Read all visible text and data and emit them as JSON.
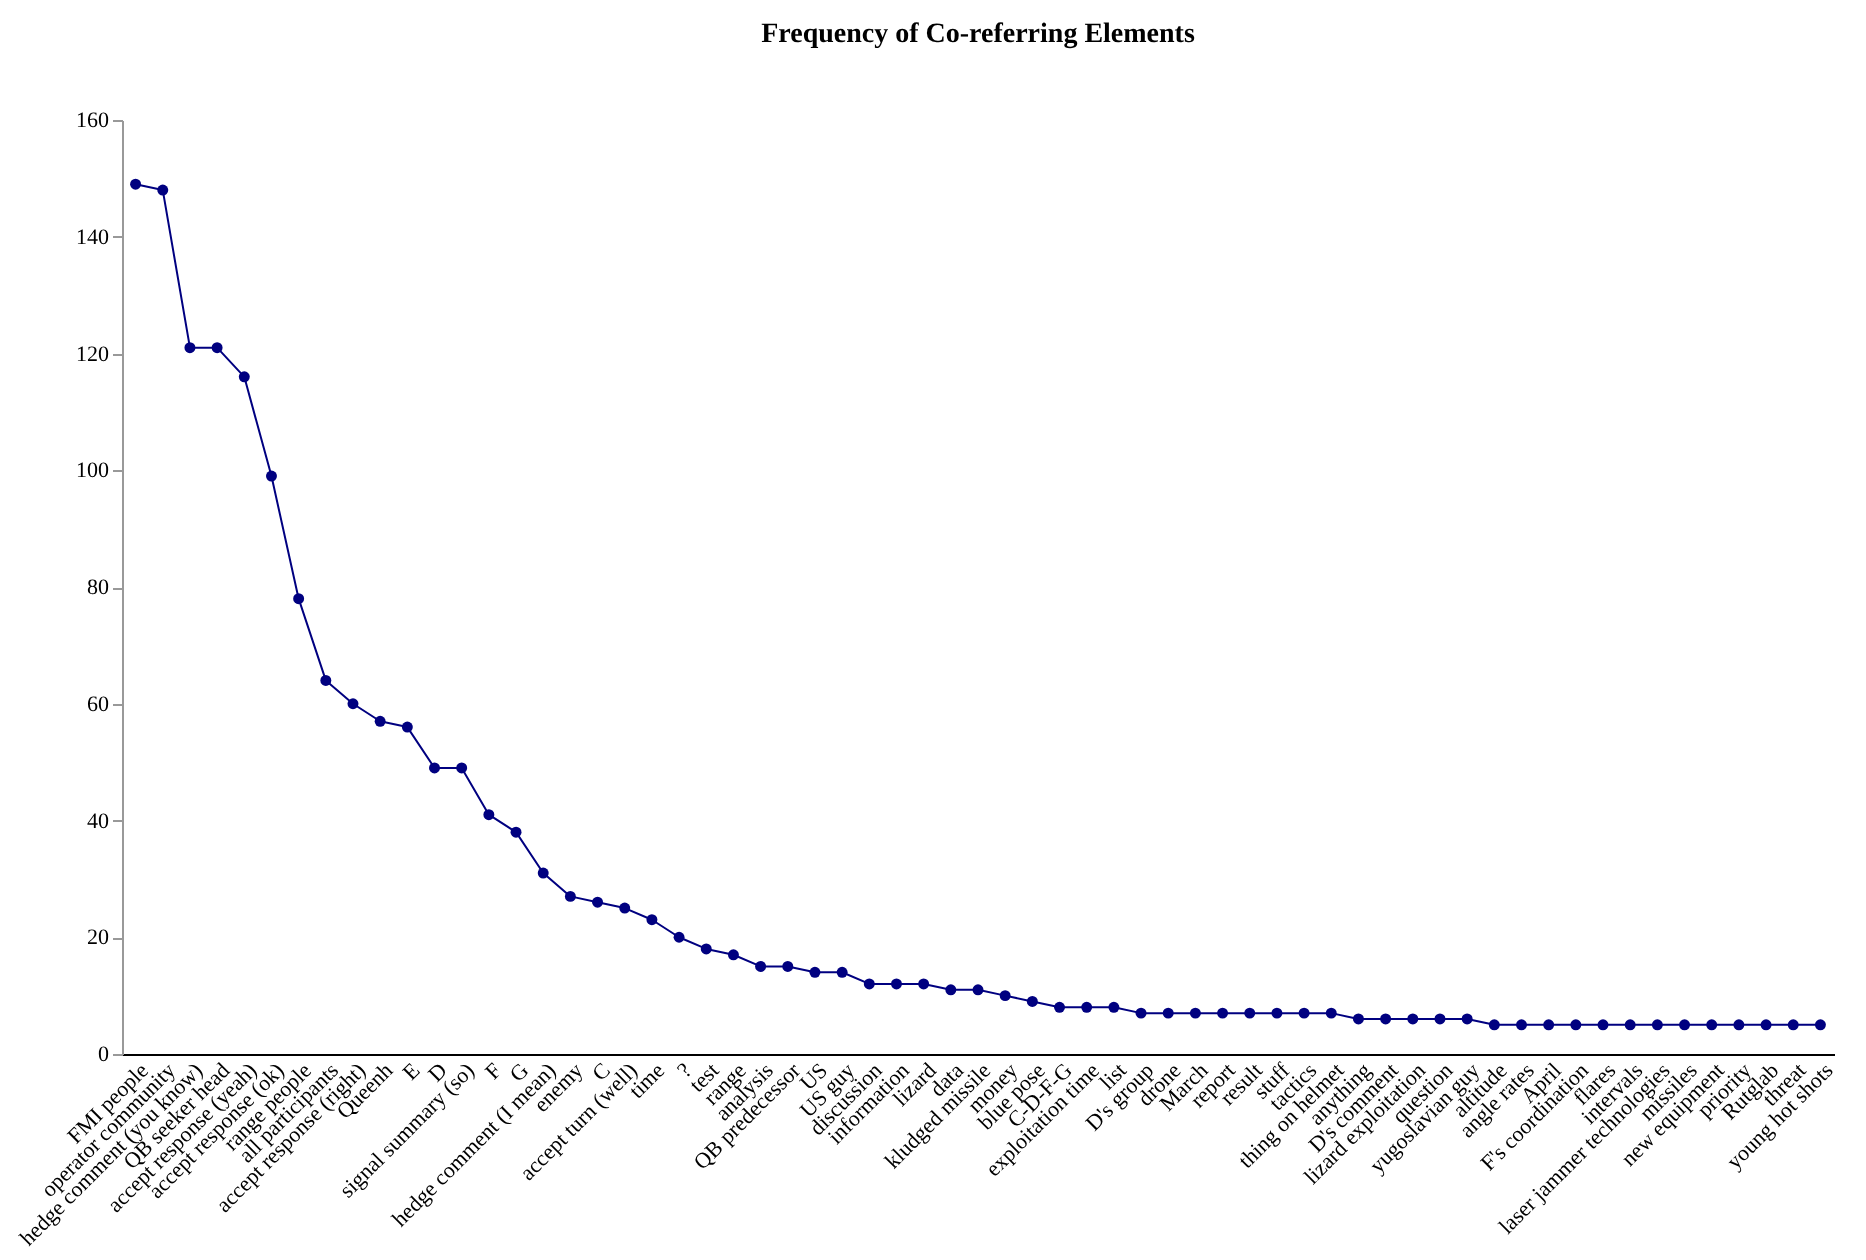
{
  "chart_data": {
    "type": "line",
    "title": "Frequency of Co-referring Elements",
    "categories": [
      "FMI people",
      "operator community",
      "hedge comment (you know)",
      "QB seeker head",
      "accept response (yeah)",
      "accept response (ok)",
      "range people",
      "all participants",
      "accept response (right)",
      "Queenh",
      "E",
      "D",
      "signal summary (so)",
      "F",
      "G",
      "hedge comment (I mean)",
      "enemy",
      "C",
      "accept turn (well)",
      "time",
      "?",
      "test",
      "range",
      "analysis",
      "QB predecessor",
      "US",
      "US guy",
      "discussion",
      "information",
      "lizard",
      "data",
      "kludged missile",
      "money",
      "blue pose",
      "C-D-F-G",
      "exploitation time",
      "list",
      "D's group",
      "drone",
      "March",
      "report",
      "result",
      "stuff",
      "tactics",
      "thing on helmet",
      "anything",
      "D's comment",
      "lizard exploitation",
      "question",
      "yugoslavian guy",
      "altitude",
      "angle rates",
      "April",
      "F's coordination",
      "flares",
      "intervals",
      "laser jammer technologies",
      "missiles",
      "new equipment",
      "priority",
      "Rutglab",
      "threat",
      "young hot shots"
    ],
    "series": [
      {
        "color": "#000080",
        "values": [
          149,
          148,
          121,
          121,
          116,
          99,
          78,
          64,
          60,
          57,
          56,
          49,
          49,
          41,
          38,
          31,
          27,
          26,
          25,
          23,
          20,
          18,
          17,
          15,
          15,
          14,
          14,
          12,
          12,
          12,
          11,
          11,
          10,
          9,
          8,
          8,
          8,
          7,
          7,
          7,
          7,
          7,
          7,
          7,
          7,
          6,
          6,
          6,
          6,
          6,
          5,
          5,
          5,
          5,
          5,
          5,
          5,
          5,
          5,
          5,
          5,
          5,
          5
        ]
      }
    ],
    "ylim": [
      0,
      160
    ],
    "yticks": [
      0,
      20,
      40,
      60,
      80,
      100,
      120,
      140,
      160
    ],
    "grid": false,
    "marker": "circle",
    "line_style": "solid"
  }
}
